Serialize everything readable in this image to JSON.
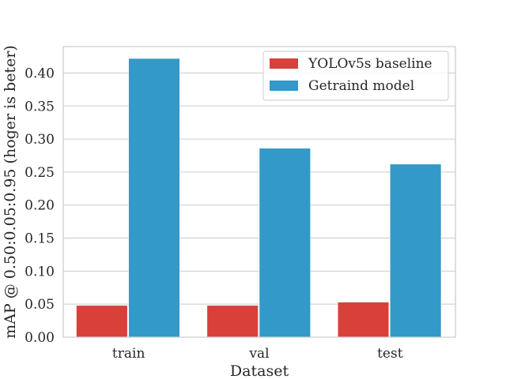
{
  "chart_data": {
    "type": "bar",
    "title": "",
    "xlabel": "Dataset",
    "ylabel": "mAP @ 0.50:0.05:0.95 (hoger is beter)",
    "categories": [
      "train",
      "val",
      "test"
    ],
    "series": [
      {
        "name": "YOLOv5s baseline",
        "color": "#d9403a",
        "values": [
          0.048,
          0.048,
          0.053
        ]
      },
      {
        "name": "Getraind model",
        "color": "#3399c8",
        "values": [
          0.422,
          0.286,
          0.262
        ]
      }
    ],
    "ylim": [
      0,
      0.44
    ],
    "yticks": [
      0.0,
      0.05,
      0.1,
      0.15,
      0.2,
      0.25,
      0.3,
      0.35,
      0.4
    ],
    "ytick_labels": [
      "0.00",
      "0.05",
      "0.10",
      "0.15",
      "0.20",
      "0.25",
      "0.30",
      "0.35",
      "0.40"
    ],
    "grid": true,
    "legend_position": "top-right"
  }
}
